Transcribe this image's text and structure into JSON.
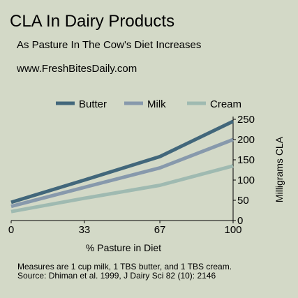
{
  "chart_data": {
    "type": "line",
    "title": "CLA In Dairy Products",
    "subtitle": "As Pasture In The Cow's Diet Increases",
    "source_url": "www.FreshBitesDaily.com",
    "xlabel": "% Pasture in Diet",
    "ylabel": "Milligrams CLA",
    "x": [
      0,
      33,
      67,
      100
    ],
    "x_ticks": [
      "0",
      "33",
      "67",
      "100"
    ],
    "xlim": [
      0,
      100
    ],
    "ylim": [
      0,
      250
    ],
    "y_ticks": [
      "0",
      "50",
      "100",
      "150",
      "200",
      "250"
    ],
    "y_axis_side": "right",
    "grid": false,
    "legend_position": "top",
    "series": [
      {
        "name": "Butter",
        "color": "#42677b",
        "values": [
          45,
          100,
          158,
          245
        ]
      },
      {
        "name": "Milk",
        "color": "#8799ac",
        "values": [
          35,
          82,
          130,
          200
        ]
      },
      {
        "name": "Cream",
        "color": "#9fbab1",
        "values": [
          22,
          55,
          87,
          135
        ]
      }
    ],
    "notes": [
      "Measures are 1 cup milk, 1 TBS butter, and 1 TBS cream.",
      "Source:  Dhiman et al. 1999, J Dairy Sci 82 (10): 2146"
    ]
  }
}
